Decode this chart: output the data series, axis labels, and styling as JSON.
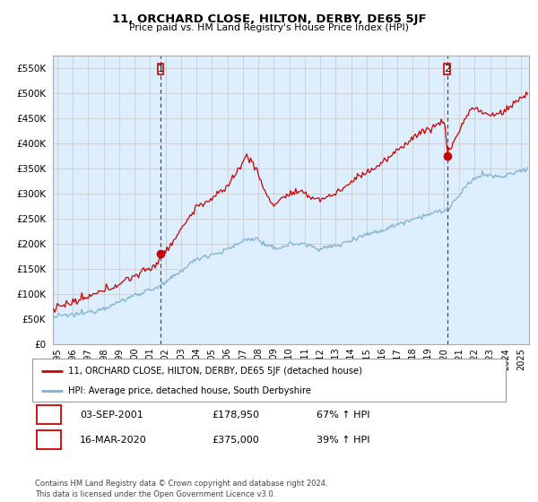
{
  "title": "11, ORCHARD CLOSE, HILTON, DERBY, DE65 5JF",
  "subtitle": "Price paid vs. HM Land Registry's House Price Index (HPI)",
  "ylim": [
    0,
    575000
  ],
  "yticks": [
    0,
    50000,
    100000,
    150000,
    200000,
    250000,
    300000,
    350000,
    400000,
    450000,
    500000,
    550000
  ],
  "xlim_start": 1994.7,
  "xlim_end": 2025.5,
  "xtick_years": [
    1995,
    1996,
    1997,
    1998,
    1999,
    2000,
    2001,
    2002,
    2003,
    2004,
    2005,
    2006,
    2007,
    2008,
    2009,
    2010,
    2011,
    2012,
    2013,
    2014,
    2015,
    2016,
    2017,
    2018,
    2019,
    2020,
    2021,
    2022,
    2023,
    2024,
    2025
  ],
  "property_color": "#cc0000",
  "hpi_color": "#7bafd4",
  "fill_color": "#ddeeff",
  "purchase1_date": 2001.67,
  "purchase1_price": 178950,
  "purchase1_label": "1",
  "purchase2_date": 2020.21,
  "purchase2_price": 375000,
  "purchase2_label": "2",
  "legend_property": "11, ORCHARD CLOSE, HILTON, DERBY, DE65 5JF (detached house)",
  "legend_hpi": "HPI: Average price, detached house, South Derbyshire",
  "table_row1_num": "1",
  "table_row1_date": "03-SEP-2001",
  "table_row1_price": "£178,950",
  "table_row1_hpi": "67% ↑ HPI",
  "table_row2_num": "2",
  "table_row2_date": "16-MAR-2020",
  "table_row2_price": "£375,000",
  "table_row2_hpi": "39% ↑ HPI",
  "footer": "Contains HM Land Registry data © Crown copyright and database right 2024.\nThis data is licensed under the Open Government Licence v3.0.",
  "background_color": "#ffffff",
  "grid_color": "#cccccc",
  "vline_color": "#cc0000"
}
